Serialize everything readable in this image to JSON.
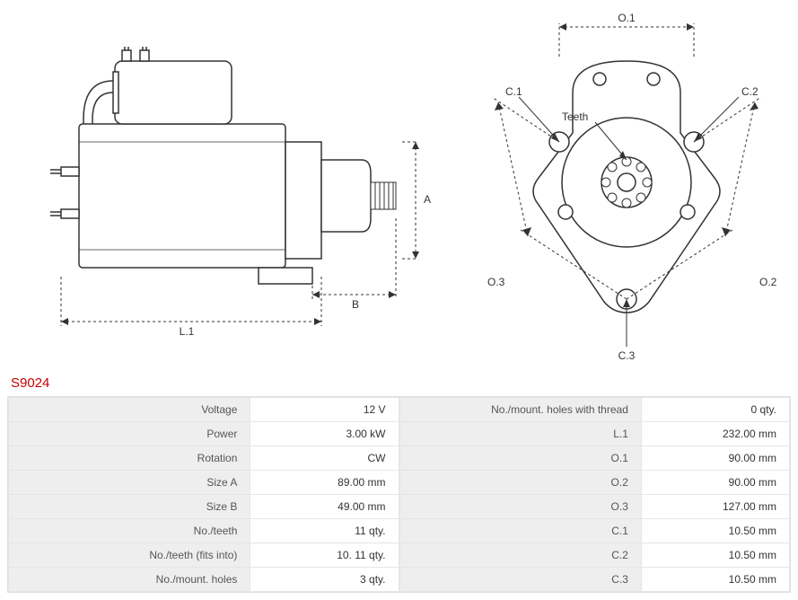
{
  "part_number": "S9024",
  "diagram_labels": {
    "L1": "L.1",
    "A": "A",
    "B": "B",
    "O1": "O.1",
    "O2": "O.2",
    "O3": "O.3",
    "C1": "C.1",
    "C2": "C.2",
    "C3": "C.3",
    "Teeth": "Teeth"
  },
  "spec_left": {
    "rows": [
      {
        "label": "Voltage",
        "value": "12 V"
      },
      {
        "label": "Power",
        "value": "3.00 kW"
      },
      {
        "label": "Rotation",
        "value": "CW"
      },
      {
        "label": "Size A",
        "value": "89.00 mm"
      },
      {
        "label": "Size B",
        "value": "49.00 mm"
      },
      {
        "label": "No./teeth",
        "value": "11 qty."
      },
      {
        "label": "No./teeth (fits into)",
        "value": "10. 11 qty."
      },
      {
        "label": "No./mount. holes",
        "value": "3 qty."
      }
    ]
  },
  "spec_right": {
    "rows": [
      {
        "label": "No./mount. holes with thread",
        "value": "0 qty."
      },
      {
        "label": "L.1",
        "value": "232.00 mm"
      },
      {
        "label": "O.1",
        "value": "90.00 mm"
      },
      {
        "label": "O.2",
        "value": "90.00 mm"
      },
      {
        "label": "O.3",
        "value": "127.00 mm"
      },
      {
        "label": "C.1",
        "value": "10.50 mm"
      },
      {
        "label": "C.2",
        "value": "10.50 mm"
      },
      {
        "label": "C.3",
        "value": "10.50 mm"
      }
    ]
  },
  "style": {
    "stroke": "#333333",
    "dash": "3,3",
    "bg": "#ffffff",
    "header_bg": "#eeeeee",
    "accent": "#c00000"
  }
}
